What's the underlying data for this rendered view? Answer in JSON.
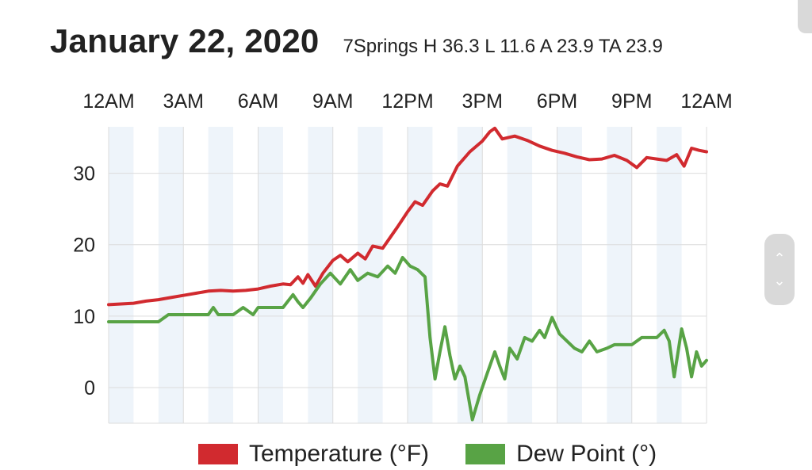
{
  "header": {
    "title": "January 22, 2020",
    "subtitle": "7Springs H 36.3 L 11.6 A 23.9 TA 23.9"
  },
  "colors": {
    "temperature": "#d12a2f",
    "dew_point": "#58a345",
    "band": "#eef4fa",
    "grid": "#dcdcdc"
  },
  "chart_data": {
    "type": "line",
    "title": "January 22, 2020",
    "subtitle": "7Springs H 36.3 L 11.6 A 23.9 TA 23.9",
    "x_tick_labels": [
      "12AM",
      "3AM",
      "6AM",
      "9AM",
      "12PM",
      "3PM",
      "6PM",
      "9PM",
      "12AM"
    ],
    "x_tick_hours": [
      0,
      3,
      6,
      9,
      12,
      15,
      18,
      21,
      24
    ],
    "y_ticks": [
      0,
      10,
      20,
      30
    ],
    "ylim": [
      -5,
      36.5
    ],
    "xlim_hours": [
      0,
      24
    ],
    "grid": true,
    "legend_position": "bottom",
    "series": [
      {
        "name": "Temperature (°F)",
        "color": "#d12a2f",
        "points": [
          [
            0,
            11.6
          ],
          [
            0.5,
            11.7
          ],
          [
            1,
            11.8
          ],
          [
            1.5,
            12.1
          ],
          [
            2,
            12.3
          ],
          [
            2.5,
            12.6
          ],
          [
            3,
            12.9
          ],
          [
            3.5,
            13.2
          ],
          [
            4,
            13.5
          ],
          [
            4.5,
            13.6
          ],
          [
            5,
            13.5
          ],
          [
            5.5,
            13.6
          ],
          [
            6,
            13.8
          ],
          [
            6.5,
            14.2
          ],
          [
            7,
            14.5
          ],
          [
            7.3,
            14.4
          ],
          [
            7.6,
            15.5
          ],
          [
            7.8,
            14.6
          ],
          [
            8,
            15.8
          ],
          [
            8.3,
            14.2
          ],
          [
            8.6,
            16.0
          ],
          [
            9,
            17.8
          ],
          [
            9.3,
            18.5
          ],
          [
            9.6,
            17.6
          ],
          [
            10,
            18.8
          ],
          [
            10.3,
            18.0
          ],
          [
            10.6,
            19.8
          ],
          [
            11,
            19.5
          ],
          [
            11.3,
            21.0
          ],
          [
            11.6,
            22.5
          ],
          [
            12,
            24.6
          ],
          [
            12.3,
            26.0
          ],
          [
            12.6,
            25.5
          ],
          [
            13,
            27.5
          ],
          [
            13.3,
            28.5
          ],
          [
            13.6,
            28.2
          ],
          [
            14,
            31.0
          ],
          [
            14.5,
            33.0
          ],
          [
            15,
            34.5
          ],
          [
            15.3,
            35.8
          ],
          [
            15.5,
            36.3
          ],
          [
            15.8,
            34.8
          ],
          [
            16.3,
            35.2
          ],
          [
            16.8,
            34.6
          ],
          [
            17.3,
            33.8
          ],
          [
            17.8,
            33.2
          ],
          [
            18.3,
            32.8
          ],
          [
            18.8,
            32.3
          ],
          [
            19.3,
            31.9
          ],
          [
            19.8,
            32.0
          ],
          [
            20.3,
            32.5
          ],
          [
            20.8,
            31.8
          ],
          [
            21.2,
            30.8
          ],
          [
            21.6,
            32.2
          ],
          [
            22,
            32.0
          ],
          [
            22.4,
            31.8
          ],
          [
            22.8,
            32.6
          ],
          [
            23.1,
            31.0
          ],
          [
            23.4,
            33.5
          ],
          [
            23.7,
            33.2
          ],
          [
            24,
            33.0
          ]
        ]
      },
      {
        "name": "Dew Point (°)",
        "color": "#58a345",
        "points": [
          [
            0,
            9.2
          ],
          [
            1,
            9.2
          ],
          [
            2,
            9.2
          ],
          [
            2.4,
            10.2
          ],
          [
            3,
            10.2
          ],
          [
            4,
            10.2
          ],
          [
            4.2,
            11.2
          ],
          [
            4.4,
            10.2
          ],
          [
            5,
            10.2
          ],
          [
            5.4,
            11.2
          ],
          [
            5.8,
            10.2
          ],
          [
            6,
            11.2
          ],
          [
            6.5,
            11.2
          ],
          [
            7,
            11.2
          ],
          [
            7.4,
            13.0
          ],
          [
            7.6,
            12.0
          ],
          [
            7.8,
            11.2
          ],
          [
            8.1,
            12.5
          ],
          [
            8.5,
            14.5
          ],
          [
            8.9,
            16.0
          ],
          [
            9.3,
            14.5
          ],
          [
            9.7,
            16.5
          ],
          [
            10,
            15.0
          ],
          [
            10.4,
            16.0
          ],
          [
            10.8,
            15.5
          ],
          [
            11.2,
            17.0
          ],
          [
            11.5,
            16.0
          ],
          [
            11.8,
            18.2
          ],
          [
            12.1,
            17.0
          ],
          [
            12.4,
            16.5
          ],
          [
            12.7,
            15.5
          ],
          [
            12.9,
            7.0
          ],
          [
            13.1,
            1.2
          ],
          [
            13.3,
            5.0
          ],
          [
            13.5,
            8.5
          ],
          [
            13.7,
            4.5
          ],
          [
            13.9,
            1.2
          ],
          [
            14.1,
            3.0
          ],
          [
            14.3,
            1.5
          ],
          [
            14.6,
            -4.5
          ],
          [
            14.9,
            -1.0
          ],
          [
            15.2,
            2.0
          ],
          [
            15.5,
            5.0
          ],
          [
            15.7,
            3.0
          ],
          [
            15.9,
            1.2
          ],
          [
            16.1,
            5.5
          ],
          [
            16.4,
            4.0
          ],
          [
            16.7,
            7.0
          ],
          [
            17,
            6.5
          ],
          [
            17.3,
            8.0
          ],
          [
            17.5,
            7.0
          ],
          [
            17.8,
            9.8
          ],
          [
            18.1,
            7.5
          ],
          [
            18.4,
            6.5
          ],
          [
            18.7,
            5.5
          ],
          [
            19,
            5.0
          ],
          [
            19.3,
            6.5
          ],
          [
            19.6,
            5.0
          ],
          [
            20,
            5.5
          ],
          [
            20.3,
            6.0
          ],
          [
            20.7,
            6.0
          ],
          [
            21,
            6.0
          ],
          [
            21.4,
            7.0
          ],
          [
            22,
            7.0
          ],
          [
            22.3,
            8.0
          ],
          [
            22.5,
            6.5
          ],
          [
            22.7,
            1.5
          ],
          [
            23,
            8.2
          ],
          [
            23.2,
            5.5
          ],
          [
            23.4,
            1.5
          ],
          [
            23.6,
            5.0
          ],
          [
            23.8,
            3.0
          ],
          [
            24,
            3.8
          ]
        ]
      }
    ]
  },
  "legend": {
    "items": [
      {
        "label": "Temperature (°F)",
        "color": "#d12a2f"
      },
      {
        "label": "Dew Point (°)",
        "color": "#58a345"
      }
    ]
  },
  "scroll_widget": {
    "up_icon": "chevron-up-icon",
    "down_icon": "chevron-down-icon"
  }
}
